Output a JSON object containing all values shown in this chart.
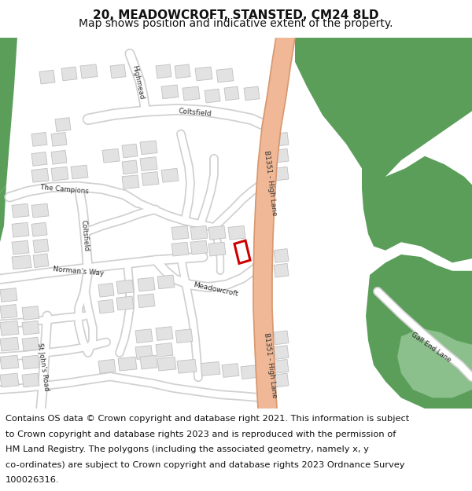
{
  "title_line1": "20, MEADOWCROFT, STANSTED, CM24 8LD",
  "title_line2": "Map shows position and indicative extent of the property.",
  "footer_lines": [
    "Contains OS data © Crown copyright and database right 2021. This information is subject",
    "to Crown copyright and database rights 2023 and is reproduced with the permission of",
    "HM Land Registry. The polygons (including the associated geometry, namely x, y",
    "co-ordinates) are subject to Crown copyright and database rights 2023 Ordnance Survey",
    "100026316."
  ],
  "title_fontsize": 11,
  "subtitle_fontsize": 10,
  "footer_fontsize": 8.2,
  "map_bg": "#f5f5f2",
  "green_dark": "#5a9e5a",
  "green_light": "#8bbf8b",
  "road_salmon": "#f0b896",
  "road_salmon_edge": "#d89870",
  "road_white": "#ffffff",
  "road_grey": "#d0d0d0",
  "building_fill": "#e2e2e2",
  "building_edge": "#c0c0c0",
  "red_poly": "#cc0000",
  "title_bg": "#ffffff",
  "footer_bg": "#ffffff"
}
